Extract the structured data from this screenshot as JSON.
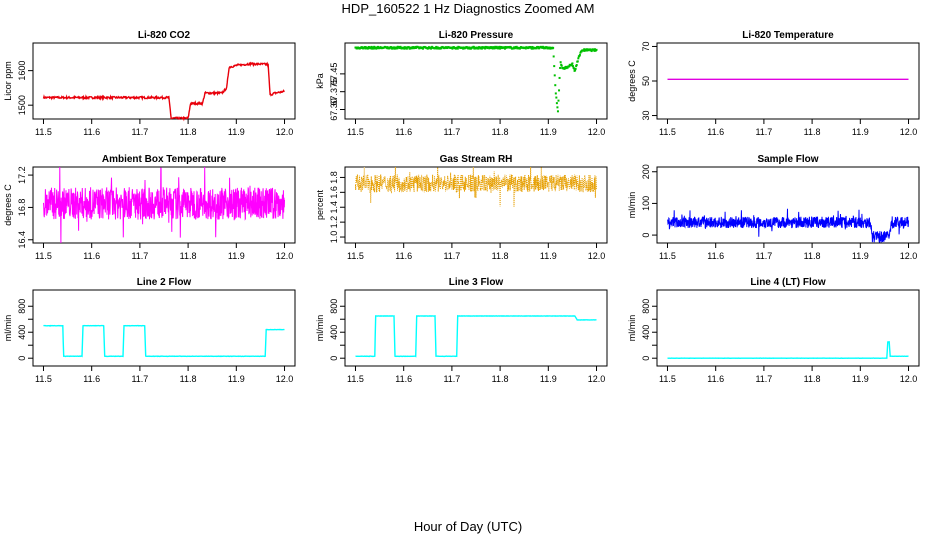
{
  "figure": {
    "title": "HDP_160522  1 Hz Diagnostics Zoomed AM",
    "xlabel": "Hour of Day (UTC)"
  },
  "chart_data": [
    {
      "id": "co2",
      "type": "line",
      "title": "Li-820 CO2",
      "ylabel": "Licor ppm",
      "color": "#e8000b",
      "style": "line",
      "xlim": [
        11.5,
        12.0
      ],
      "ylim": [
        1460,
        1680
      ],
      "xticks": [
        "11.5",
        "11.6",
        "11.7",
        "11.8",
        "11.9",
        "12.0"
      ],
      "yticks": [
        1500,
        1600
      ],
      "ytick_labels": [
        "1500",
        "1600"
      ],
      "x": [
        11.5,
        11.76,
        11.765,
        11.8,
        11.805,
        11.83,
        11.835,
        11.87,
        11.875,
        11.88,
        11.885,
        11.9,
        11.93,
        11.966,
        11.97,
        11.98,
        12.0
      ],
      "y": [
        1522,
        1522,
        1462,
        1462,
        1505,
        1505,
        1535,
        1535,
        1542,
        1550,
        1610,
        1615,
        1620,
        1618,
        1530,
        1535,
        1540
      ],
      "noise": 3
    },
    {
      "id": "pressure",
      "type": "scatter",
      "title": "Li-820 Pressure",
      "ylabel": "kPa",
      "color": "#00c000",
      "style": "dots",
      "xlim": [
        11.5,
        12.0
      ],
      "ylim": [
        67.26,
        67.58
      ],
      "xticks": [
        "11.5",
        "11.6",
        "11.7",
        "11.8",
        "11.9",
        "12.0"
      ],
      "yticks": [
        67.3,
        67.375,
        67.45
      ],
      "ytick_labels": [
        "67.30",
        "67.375",
        "67.45"
      ],
      "x": [
        11.5,
        11.91,
        11.915,
        11.92,
        11.925,
        11.93,
        11.94,
        11.95,
        11.955,
        11.96,
        11.965,
        11.97,
        12.0
      ],
      "y": [
        67.56,
        67.56,
        67.38,
        67.29,
        67.5,
        67.47,
        67.48,
        67.49,
        67.46,
        67.5,
        67.53,
        67.55,
        67.55
      ],
      "noise": 0.004
    },
    {
      "id": "temperature",
      "type": "line",
      "title": "Li-820 Temperature",
      "ylabel": "degrees C",
      "color": "#e000e0",
      "style": "line",
      "xlim": [
        11.5,
        12.0
      ],
      "ylim": [
        28,
        72
      ],
      "xticks": [
        "11.5",
        "11.6",
        "11.7",
        "11.8",
        "11.9",
        "12.0"
      ],
      "yticks": [
        30,
        50,
        70
      ],
      "ytick_labels": [
        "30",
        "50",
        "70"
      ],
      "x": [
        11.5,
        12.0
      ],
      "y": [
        51,
        51
      ],
      "noise": 0
    },
    {
      "id": "ambient_box",
      "type": "line",
      "title": "Ambient Box Temperature",
      "ylabel": "degrees C",
      "color": "#ff00ff",
      "style": "spiky",
      "xlim": [
        11.5,
        12.0
      ],
      "ylim": [
        16.36,
        17.3
      ],
      "xticks": [
        "11.5",
        "11.6",
        "11.7",
        "11.8",
        "11.9",
        "12.0"
      ],
      "yticks": [
        16.4,
        16.8,
        17.2
      ],
      "ytick_labels": [
        "16.4",
        "16.8",
        "17.2"
      ],
      "x": [
        11.5,
        12.0
      ],
      "y": [
        16.85,
        16.85
      ],
      "noise": 0.2
    },
    {
      "id": "gas_rh",
      "type": "scatter",
      "title": "Gas Stream RH",
      "ylabel": "percent",
      "color": "#e69f00",
      "style": "spikydots",
      "xlim": [
        11.5,
        12.0
      ],
      "ylim": [
        0.92,
        1.94
      ],
      "xticks": [
        "11.5",
        "11.6",
        "11.7",
        "11.8",
        "11.9",
        "12.0"
      ],
      "yticks": [
        1.0,
        1.2,
        1.4,
        1.6,
        1.8
      ],
      "ytick_labels": [
        "1.0",
        "1.2",
        "1.4",
        "1.6",
        "1.8"
      ],
      "x": [
        11.5,
        12.0
      ],
      "y": [
        1.72,
        1.72
      ],
      "noise": 0.12
    },
    {
      "id": "sample_flow",
      "type": "line",
      "title": "Sample Flow",
      "ylabel": "ml/min",
      "color": "#0000ff",
      "style": "spiky",
      "xlim": [
        11.5,
        12.0
      ],
      "ylim": [
        -25,
        215
      ],
      "xticks": [
        "11.5",
        "11.6",
        "11.7",
        "11.8",
        "11.9",
        "12.0"
      ],
      "yticks": [
        0,
        100,
        200
      ],
      "ytick_labels": [
        "0",
        "100",
        "200"
      ],
      "x": [
        11.5,
        11.92,
        11.925,
        11.96,
        11.965,
        12.0
      ],
      "y": [
        40,
        40,
        -5,
        -5,
        40,
        40
      ],
      "noise": 18
    },
    {
      "id": "line2_flow",
      "type": "line",
      "title": "Line 2 Flow",
      "ylabel": "ml/min",
      "color": "#00ffff",
      "style": "line",
      "xlim": [
        11.5,
        12.0
      ],
      "ylim": [
        -120,
        1050
      ],
      "xticks": [
        "11.5",
        "11.6",
        "11.7",
        "11.8",
        "11.9",
        "12.0"
      ],
      "yticks": [
        0,
        200,
        400,
        600,
        800
      ],
      "ytick_labels": [
        "0",
        "400",
        "800"
      ],
      "ytick_label_values": [
        0,
        400,
        800
      ],
      "x": [
        11.5,
        11.54,
        11.542,
        11.58,
        11.582,
        11.625,
        11.627,
        11.665,
        11.667,
        11.71,
        11.712,
        11.96,
        11.962,
        12.0
      ],
      "y": [
        500,
        500,
        30,
        30,
        500,
        500,
        30,
        30,
        500,
        500,
        30,
        30,
        440,
        440
      ],
      "noise": 2
    },
    {
      "id": "line3_flow",
      "type": "line",
      "title": "Line 3 Flow",
      "ylabel": "ml/min",
      "color": "#00ffff",
      "style": "line",
      "xlim": [
        11.5,
        12.0
      ],
      "ylim": [
        -120,
        1050
      ],
      "xticks": [
        "11.5",
        "11.6",
        "11.7",
        "11.8",
        "11.9",
        "12.0"
      ],
      "yticks": [
        0,
        200,
        400,
        600,
        800
      ],
      "ytick_labels": [
        "0",
        "400",
        "800"
      ],
      "ytick_label_values": [
        0,
        400,
        800
      ],
      "x": [
        11.5,
        11.54,
        11.542,
        11.58,
        11.582,
        11.625,
        11.627,
        11.665,
        11.667,
        11.71,
        11.712,
        11.955,
        11.96,
        12.0
      ],
      "y": [
        30,
        30,
        650,
        650,
        30,
        30,
        650,
        650,
        30,
        30,
        650,
        650,
        590,
        590
      ],
      "noise": 2
    },
    {
      "id": "line4_flow",
      "type": "line",
      "title": "Line 4 (LT) Flow",
      "ylabel": "ml/min",
      "color": "#00ffff",
      "style": "line",
      "xlim": [
        11.5,
        12.0
      ],
      "ylim": [
        -120,
        1050
      ],
      "xticks": [
        "11.5",
        "11.6",
        "11.7",
        "11.8",
        "11.9",
        "12.0"
      ],
      "yticks": [
        0,
        200,
        400,
        600,
        800
      ],
      "ytick_labels": [
        "0",
        "400",
        "800"
      ],
      "ytick_label_values": [
        0,
        400,
        800
      ],
      "x": [
        11.5,
        11.955,
        11.957,
        11.96,
        11.962,
        12.0
      ],
      "y": [
        0,
        0,
        250,
        250,
        30,
        30
      ],
      "noise": 1
    }
  ]
}
